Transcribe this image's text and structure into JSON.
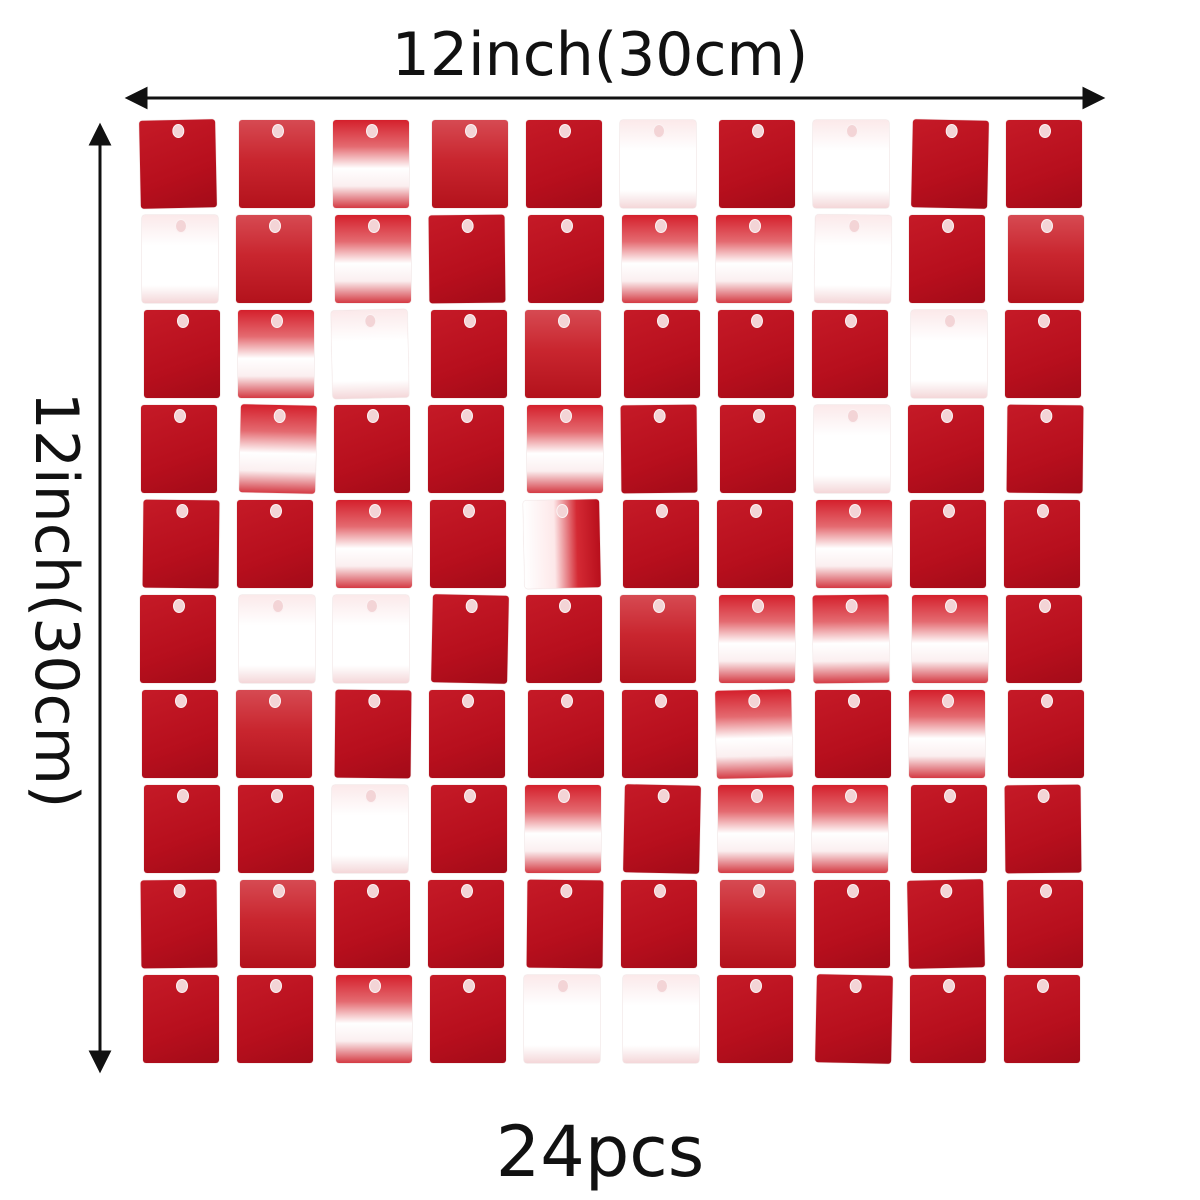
{
  "dimensions": {
    "width_label": "12inch(30cm)",
    "height_label": "12inch(30cm)",
    "quantity_label": "24pcs"
  },
  "panel": {
    "rows": [
      [
        "red",
        "matte",
        "shine",
        "matte",
        "red",
        "white",
        "red",
        "white",
        "red",
        "red"
      ],
      [
        "white",
        "matte",
        "shine",
        "red",
        "red",
        "shine",
        "shine",
        "white",
        "red",
        "matte"
      ],
      [
        "red",
        "shine",
        "white",
        "red",
        "matte",
        "red",
        "red",
        "red",
        "white",
        "red"
      ],
      [
        "red",
        "shine",
        "red",
        "red",
        "shine",
        "red",
        "red",
        "white",
        "red",
        "red"
      ],
      [
        "red",
        "red",
        "shine",
        "red",
        "half",
        "red",
        "red",
        "shine",
        "red",
        "red"
      ],
      [
        "red",
        "white",
        "white",
        "red",
        "red",
        "matte",
        "shine",
        "shine",
        "shine",
        "red"
      ],
      [
        "red",
        "matte",
        "red",
        "red",
        "red",
        "red",
        "shine",
        "red",
        "shine",
        "red"
      ],
      [
        "red",
        "red",
        "white",
        "red",
        "shine",
        "red",
        "shine",
        "shine",
        "red",
        "red"
      ],
      [
        "red",
        "matte",
        "red",
        "red",
        "red",
        "red",
        "matte",
        "red",
        "red",
        "red"
      ],
      [
        "red",
        "red",
        "shine",
        "red",
        "white",
        "white",
        "red",
        "red",
        "red",
        "red"
      ]
    ],
    "colors": {
      "red": "#b70f1d",
      "shine": "#ffffff",
      "accent": "#c51a27"
    }
  }
}
